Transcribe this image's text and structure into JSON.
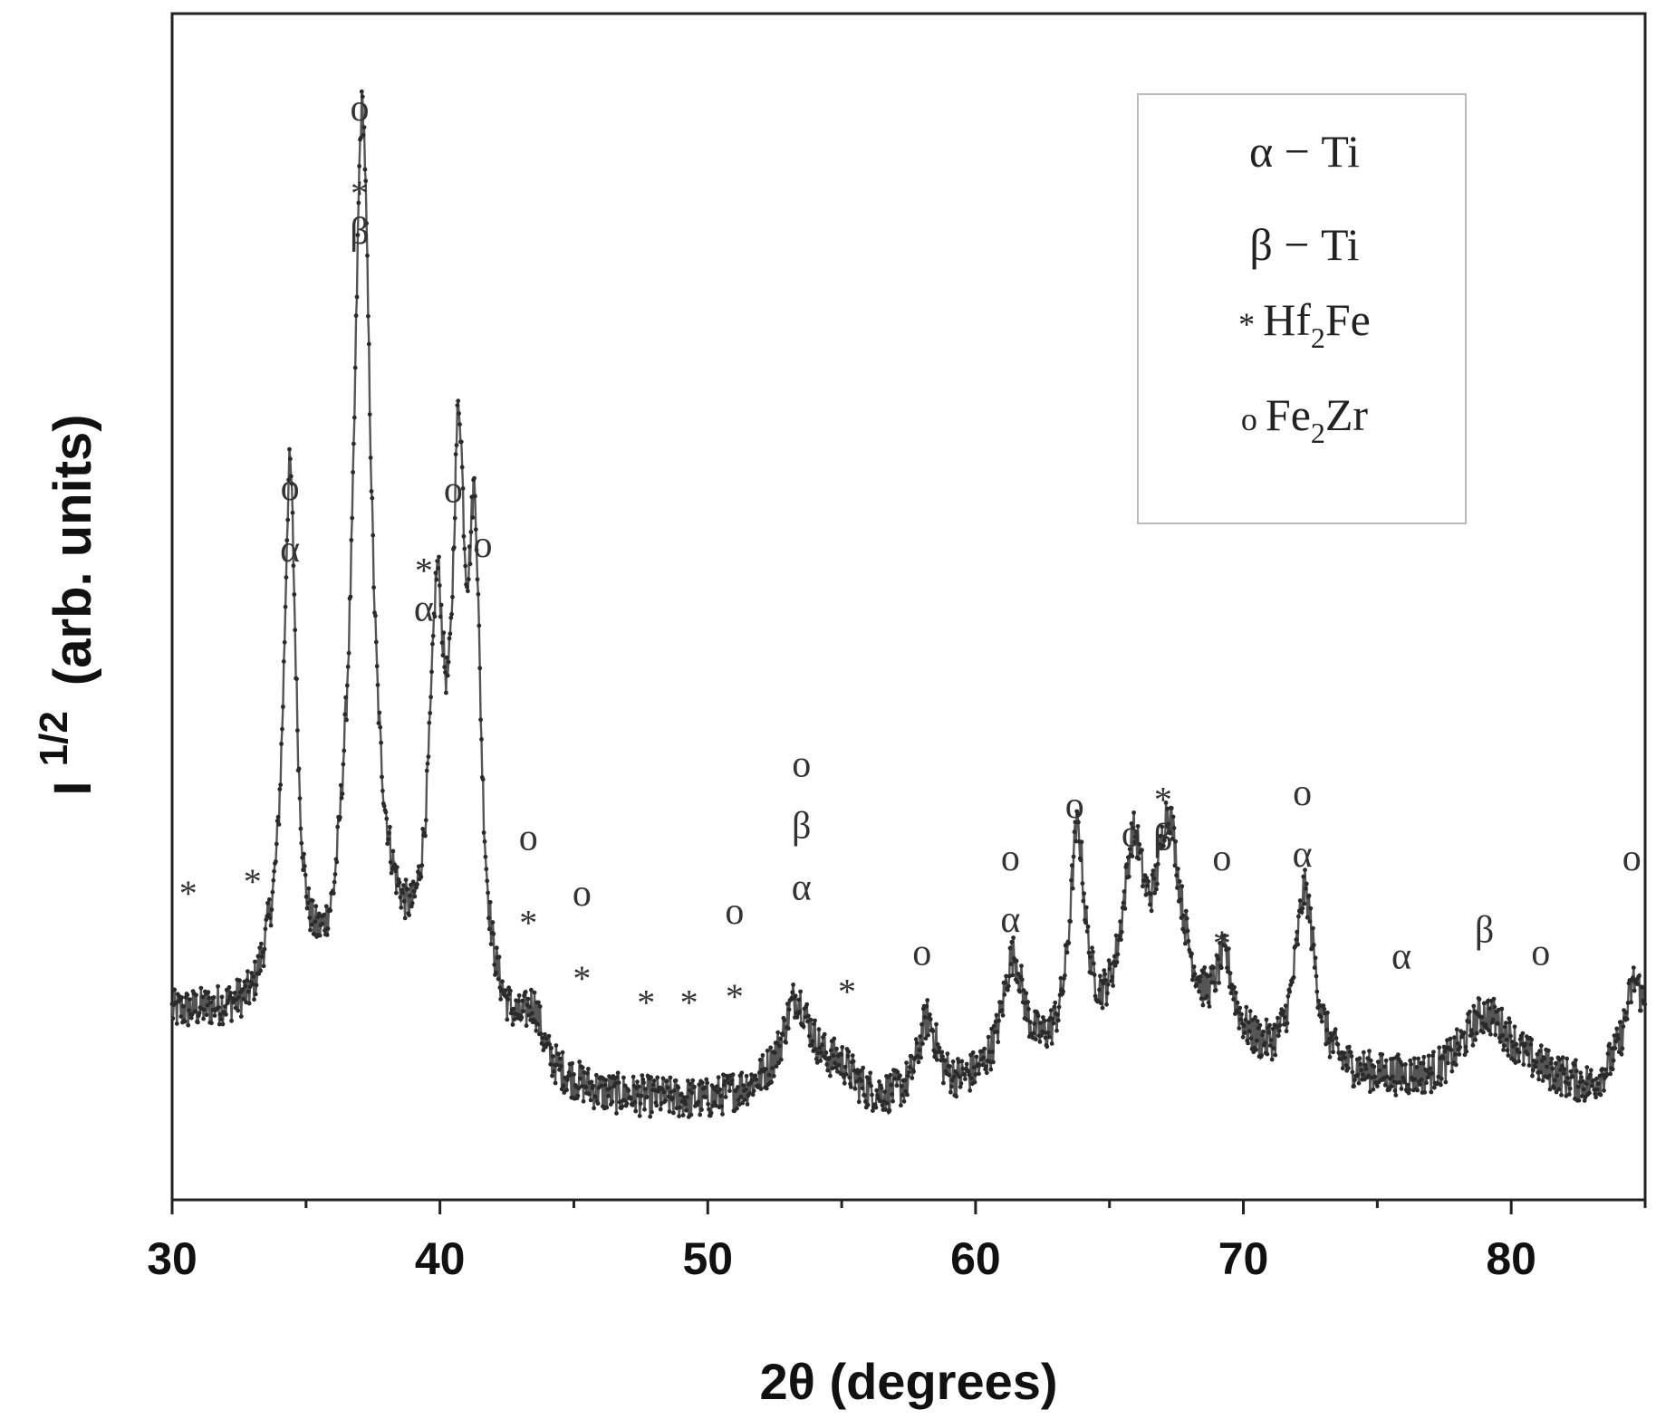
{
  "chart_data": {
    "type": "line",
    "title": "",
    "xlabel": "2θ (degrees)",
    "ylabel": {
      "base": "I",
      "superscript": "1/2",
      "unit": "(arb. units)"
    },
    "xlim": [
      30,
      85
    ],
    "ylim": [
      0,
      1
    ],
    "x_ticks": [
      30,
      40,
      50,
      60,
      70,
      80
    ],
    "x_minor_ticks": [
      35,
      45,
      55,
      65,
      75,
      85
    ],
    "grid": false,
    "legend_position": "top-right",
    "legend": [
      {
        "symbol": "α",
        "label": "α − Ti"
      },
      {
        "symbol": "β",
        "label": "β − Ti"
      },
      {
        "symbol": "*",
        "label": "Hf",
        "sub": "2",
        "tail": "Fe"
      },
      {
        "symbol": "o",
        "label": "Fe",
        "sub": "2",
        "tail": "Zr"
      }
    ],
    "baseline": [
      [
        30,
        0.155
      ],
      [
        31.5,
        0.155
      ],
      [
        33,
        0.155
      ],
      [
        33.6,
        0.18
      ],
      [
        34,
        0.18
      ],
      [
        35,
        0.16
      ],
      [
        36,
        0.165
      ],
      [
        36.4,
        0.2
      ],
      [
        38,
        0.2
      ],
      [
        39,
        0.18
      ],
      [
        39.6,
        0.2
      ],
      [
        42,
        0.14
      ],
      [
        44,
        0.1
      ],
      [
        46,
        0.085
      ],
      [
        50,
        0.08
      ],
      [
        52,
        0.09
      ],
      [
        54,
        0.1
      ],
      [
        56,
        0.08
      ],
      [
        58,
        0.075
      ],
      [
        60,
        0.09
      ],
      [
        62,
        0.1
      ],
      [
        63,
        0.11
      ],
      [
        64.8,
        0.13
      ],
      [
        65.5,
        0.15
      ],
      [
        67.8,
        0.16
      ],
      [
        68.5,
        0.14
      ],
      [
        71,
        0.11
      ],
      [
        74,
        0.1
      ],
      [
        77,
        0.095
      ],
      [
        80,
        0.11
      ],
      [
        83,
        0.09
      ],
      [
        85,
        0.13
      ]
    ],
    "peaks": [
      {
        "pos": 34.4,
        "height": 0.43,
        "width": 0.28
      },
      {
        "pos": 37.1,
        "height": 0.71,
        "width": 0.38
      },
      {
        "pos": 39.9,
        "height": 0.27,
        "width": 0.3
      },
      {
        "pos": 40.7,
        "height": 0.4,
        "width": 0.28
      },
      {
        "pos": 41.3,
        "height": 0.35,
        "width": 0.26
      },
      {
        "pos": 43.5,
        "height": 0.04,
        "width": 0.4
      },
      {
        "pos": 53.3,
        "height": 0.07,
        "width": 0.6
      },
      {
        "pos": 55.0,
        "height": 0.015,
        "width": 0.6
      },
      {
        "pos": 58.2,
        "height": 0.07,
        "width": 0.45
      },
      {
        "pos": 61.4,
        "height": 0.1,
        "width": 0.5
      },
      {
        "pos": 63.8,
        "height": 0.18,
        "width": 0.35
      },
      {
        "pos": 65.9,
        "height": 0.13,
        "width": 0.45
      },
      {
        "pos": 67.2,
        "height": 0.15,
        "width": 0.5
      },
      {
        "pos": 69.3,
        "height": 0.06,
        "width": 0.4
      },
      {
        "pos": 72.3,
        "height": 0.15,
        "width": 0.45
      },
      {
        "pos": 79.0,
        "height": 0.05,
        "width": 1.0
      },
      {
        "pos": 84.6,
        "height": 0.06,
        "width": 0.4
      }
    ],
    "annotations": [
      {
        "x": 30.6,
        "y": 0.268,
        "labels": [
          "*"
        ]
      },
      {
        "x": 33.0,
        "y": 0.278,
        "labels": [
          "*"
        ]
      },
      {
        "x": 34.4,
        "y": 0.59,
        "labels": [
          "o",
          "α"
        ]
      },
      {
        "x": 37.0,
        "y": 0.91,
        "labels": [
          "o",
          "*",
          "β"
        ]
      },
      {
        "x": 39.4,
        "y": 0.54,
        "labels": [
          "*",
          "α"
        ]
      },
      {
        "x": 40.5,
        "y": 0.588,
        "labels": [
          "o"
        ]
      },
      {
        "x": 41.6,
        "y": 0.542,
        "labels": [
          "o"
        ]
      },
      {
        "x": 43.3,
        "y": 0.295,
        "labels": [
          "o",
          "*"
        ]
      },
      {
        "x": 45.3,
        "y": 0.248,
        "labels": [
          "o",
          "*"
        ]
      },
      {
        "x": 47.7,
        "y": 0.176,
        "labels": [
          "*"
        ]
      },
      {
        "x": 49.3,
        "y": 0.176,
        "labels": [
          "*"
        ]
      },
      {
        "x": 51.0,
        "y": 0.233,
        "labels": [
          "o",
          "*"
        ]
      },
      {
        "x": 53.5,
        "y": 0.357,
        "labels": [
          "o",
          "β",
          "α"
        ]
      },
      {
        "x": 55.2,
        "y": 0.185,
        "labels": [
          "*"
        ]
      },
      {
        "x": 58.0,
        "y": 0.198,
        "labels": [
          "o"
        ]
      },
      {
        "x": 61.3,
        "y": 0.278,
        "labels": [
          "o",
          "α"
        ]
      },
      {
        "x": 63.7,
        "y": 0.322,
        "labels": [
          "o"
        ]
      },
      {
        "x": 65.8,
        "y": 0.298,
        "labels": [
          "o"
        ]
      },
      {
        "x": 67.0,
        "y": 0.347,
        "labels": [
          "*",
          "β"
        ]
      },
      {
        "x": 69.2,
        "y": 0.278,
        "labels": [
          "o",
          "*"
        ]
      },
      {
        "x": 72.2,
        "y": 0.333,
        "labels": [
          "o",
          "α"
        ]
      },
      {
        "x": 75.9,
        "y": 0.195,
        "labels": [
          "α"
        ]
      },
      {
        "x": 79.0,
        "y": 0.217,
        "labels": [
          "β"
        ]
      },
      {
        "x": 81.1,
        "y": 0.198,
        "labels": [
          "o"
        ]
      },
      {
        "x": 84.5,
        "y": 0.278,
        "labels": [
          "o"
        ]
      }
    ]
  }
}
